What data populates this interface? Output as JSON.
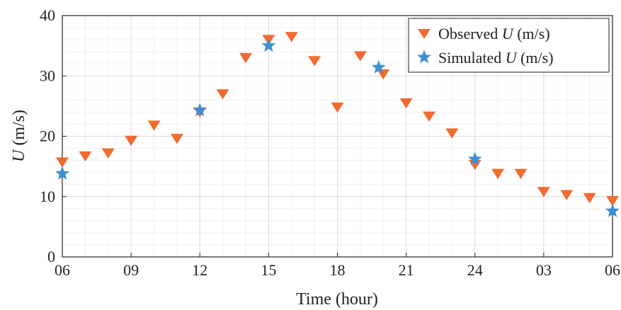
{
  "chart_data": {
    "type": "scatter",
    "xlabel": "Time (hour)",
    "ylabel": {
      "symbol": "U",
      "unit": " (m/s)"
    },
    "x_tick_labels": [
      "06",
      "09",
      "12",
      "15",
      "18",
      "21",
      "24",
      "03",
      "06"
    ],
    "x_range_hours": [
      6,
      30
    ],
    "ylim": [
      0,
      40
    ],
    "y_ticks": [
      0,
      10,
      20,
      30,
      40
    ],
    "grid": true,
    "minor_grid": true,
    "legend_position": "top-right",
    "series": [
      {
        "name": "Observed U (m/s)",
        "legend_prefix": "Observed ",
        "legend_symbol": "U",
        "legend_suffix": " (m/s)",
        "marker": "triangle-down",
        "color": "#f26b2e",
        "x": [
          6,
          7,
          8,
          9,
          10,
          11,
          12,
          13,
          14,
          15,
          16,
          17,
          18,
          19,
          20,
          21,
          22,
          23,
          24,
          25,
          26,
          27,
          28,
          29,
          30
        ],
        "y": [
          15.7,
          16.7,
          17.2,
          19.3,
          21.8,
          19.6,
          24.0,
          27.0,
          33.0,
          36.0,
          36.5,
          32.5,
          24.8,
          33.3,
          30.3,
          25.5,
          23.3,
          20.5,
          15.3,
          13.8,
          13.8,
          10.8,
          10.3,
          9.8,
          9.3
        ]
      },
      {
        "name": "Simulated U (m/s)",
        "legend_prefix": "Simulated ",
        "legend_symbol": "U",
        "legend_suffix": " (m/s)",
        "marker": "star",
        "color": "#3d8fd1",
        "x": [
          6,
          12,
          15,
          19.8,
          24,
          30
        ],
        "y": [
          13.8,
          24.3,
          35.0,
          31.4,
          16.2,
          7.6
        ]
      }
    ]
  }
}
